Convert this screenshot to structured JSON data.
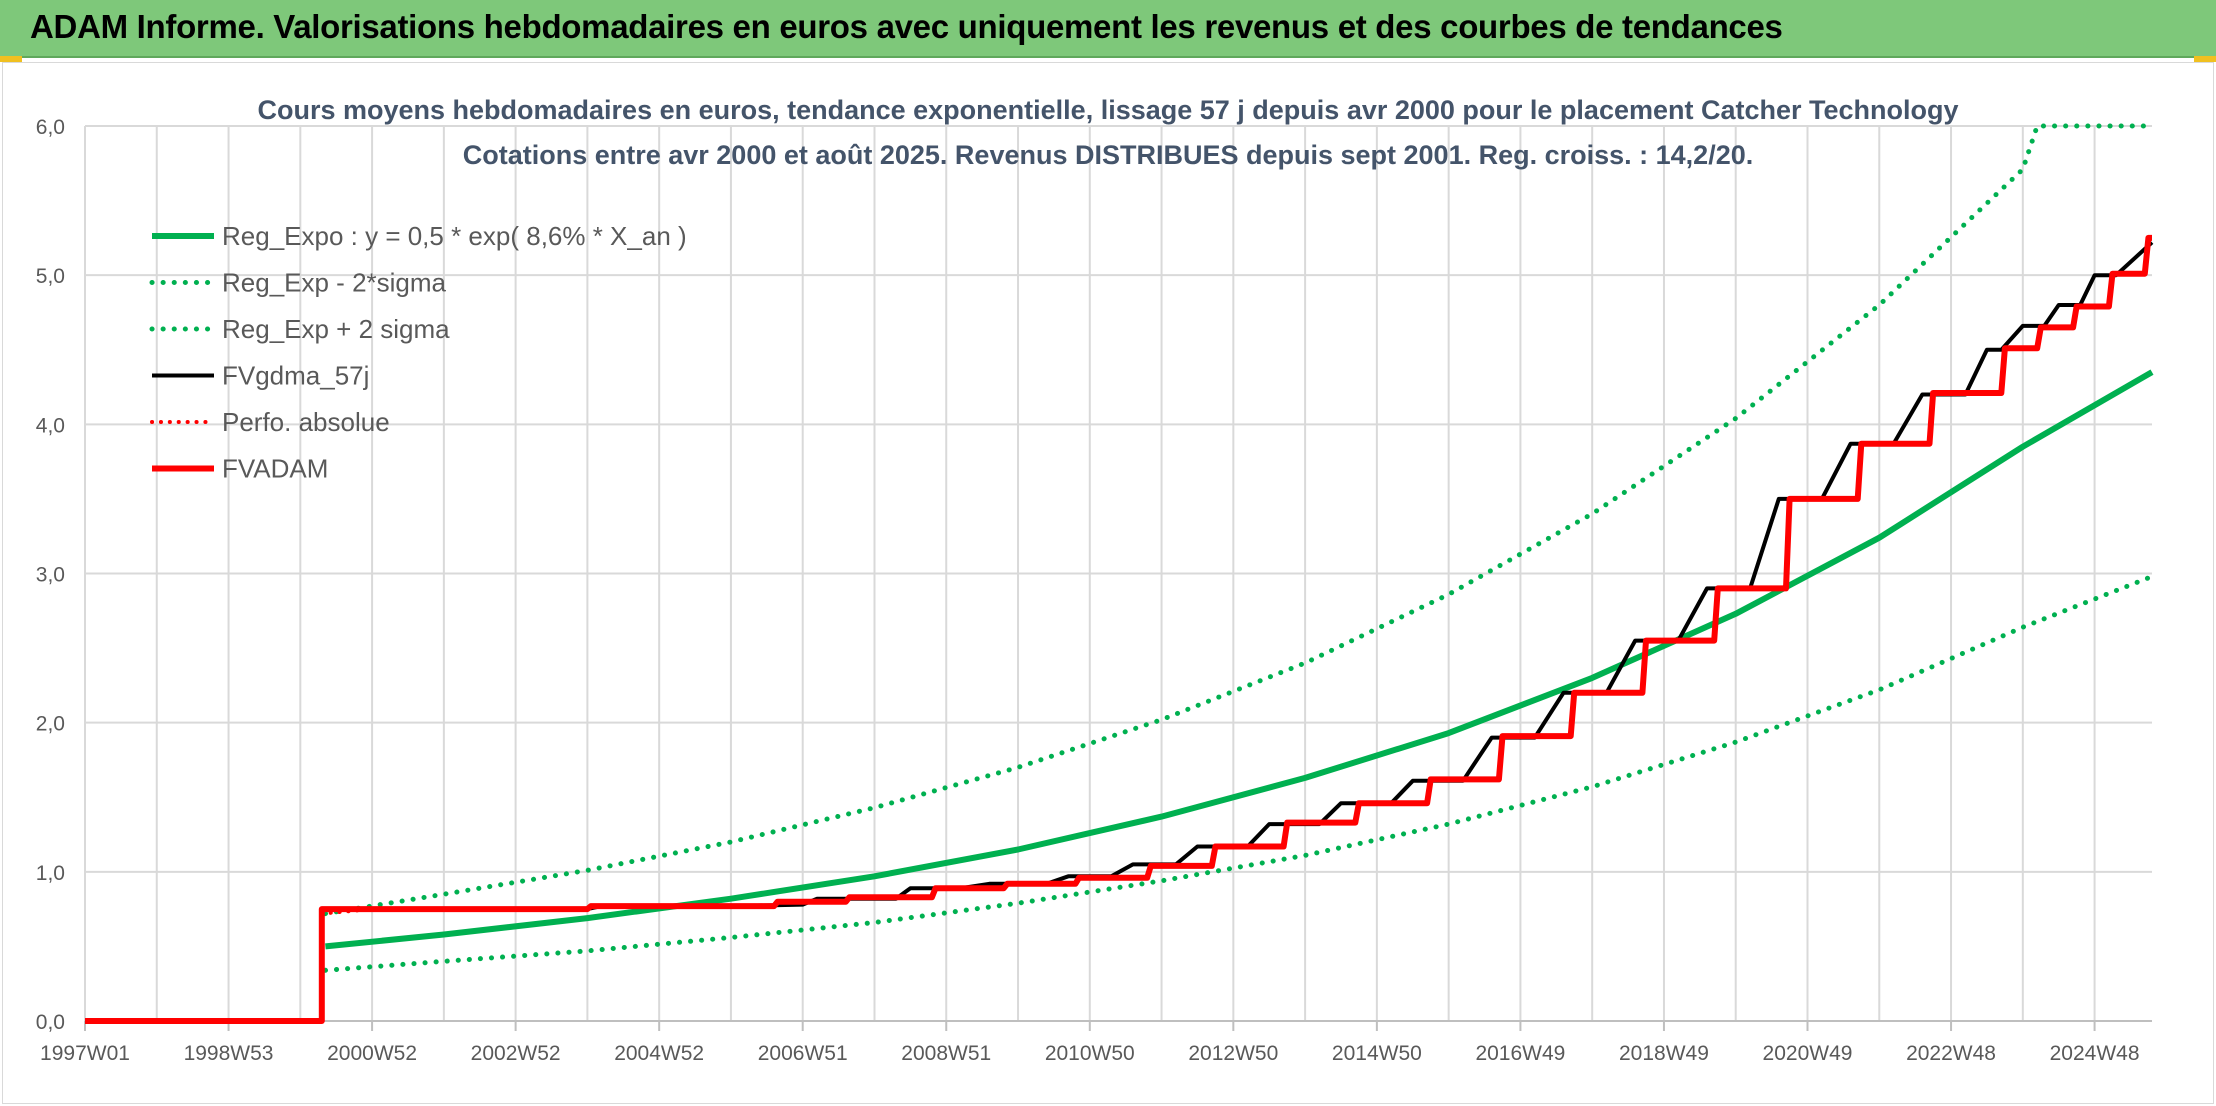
{
  "banner": {
    "title": "ADAM Informe. Valorisations hebdomadaires en euros avec uniquement les revenus et des courbes de tendances"
  },
  "chart_data": {
    "type": "line",
    "title": "Cours moyens hebdomadaires en euros, tendance exponentielle, lissage 57 j depuis avr 2000 pour le placement Catcher Technology",
    "subtitle": "Cotations entre avr 2000 et août 2025. Revenus DISTRIBUES depuis sept 2001. Reg. croiss. : 14,2/20.",
    "xlabel": "",
    "ylabel": "",
    "ylim": [
      0,
      6
    ],
    "xlim": [
      1997.0,
      2025.8
    ],
    "grid": true,
    "legend_position": "top-left",
    "y_ticks": [
      "0,0",
      "1,0",
      "2,0",
      "3,0",
      "4,0",
      "5,0",
      "6,0"
    ],
    "x_ticks": [
      {
        "label": "1997W01",
        "x": 1997.0
      },
      {
        "label": "1998W53",
        "x": 1999.0
      },
      {
        "label": "2000W52",
        "x": 2001.0
      },
      {
        "label": "2002W52",
        "x": 2003.0
      },
      {
        "label": "2004W52",
        "x": 2005.0
      },
      {
        "label": "2006W51",
        "x": 2007.0
      },
      {
        "label": "2008W51",
        "x": 2009.0
      },
      {
        "label": "2010W50",
        "x": 2011.0
      },
      {
        "label": "2012W50",
        "x": 2013.0
      },
      {
        "label": "2014W50",
        "x": 2015.0
      },
      {
        "label": "2016W49",
        "x": 2017.0
      },
      {
        "label": "2018W49",
        "x": 2019.0
      },
      {
        "label": "2020W49",
        "x": 2021.0
      },
      {
        "label": "2022W48",
        "x": 2023.0
      },
      {
        "label": "2024W48",
        "x": 2025.0
      }
    ],
    "series": [
      {
        "name": "Reg_Expo : y = 0,5 * exp( 8,6% *  X_an )",
        "color": "#00b050",
        "style": "solid",
        "width": 6,
        "points": [
          [
            2000.35,
            0.5
          ],
          [
            2002,
            0.58
          ],
          [
            2004,
            0.69
          ],
          [
            2006,
            0.82
          ],
          [
            2008,
            0.97
          ],
          [
            2010,
            1.15
          ],
          [
            2012,
            1.37
          ],
          [
            2014,
            1.63
          ],
          [
            2016,
            1.93
          ],
          [
            2018,
            2.3
          ],
          [
            2020,
            2.73
          ],
          [
            2022,
            3.24
          ],
          [
            2024,
            3.85
          ],
          [
            2025.8,
            4.35
          ]
        ]
      },
      {
        "name": "Reg_Exp - 2*sigma",
        "color": "#00b050",
        "style": "dotted",
        "width": 5,
        "points": [
          [
            2000.35,
            0.34
          ],
          [
            2002,
            0.4
          ],
          [
            2004,
            0.47
          ],
          [
            2006,
            0.56
          ],
          [
            2008,
            0.66
          ],
          [
            2010,
            0.79
          ],
          [
            2012,
            0.94
          ],
          [
            2014,
            1.11
          ],
          [
            2016,
            1.32
          ],
          [
            2018,
            1.57
          ],
          [
            2020,
            1.87
          ],
          [
            2022,
            2.22
          ],
          [
            2024,
            2.64
          ],
          [
            2025.8,
            2.98
          ]
        ]
      },
      {
        "name": "Reg_Exp + 2 sigma",
        "color": "#00b050",
        "style": "dotted",
        "width": 5,
        "points": [
          [
            2000.35,
            0.72
          ],
          [
            2002,
            0.85
          ],
          [
            2004,
            1.01
          ],
          [
            2006,
            1.2
          ],
          [
            2008,
            1.43
          ],
          [
            2010,
            1.7
          ],
          [
            2012,
            2.02
          ],
          [
            2014,
            2.4
          ],
          [
            2016,
            2.86
          ],
          [
            2018,
            3.4
          ],
          [
            2020,
            4.04
          ],
          [
            2022,
            4.8
          ],
          [
            2024,
            5.71
          ],
          [
            2024.2,
            6.0
          ],
          [
            2025.8,
            6.0
          ]
        ]
      },
      {
        "name": "FVgdma_57j",
        "color": "#000000",
        "style": "solid",
        "width": 4,
        "points": [
          [
            1997.0,
            0
          ],
          [
            2000.3,
            0
          ],
          [
            2000.3,
            0.75
          ],
          [
            2004,
            0.75
          ],
          [
            2004.2,
            0.77
          ],
          [
            2006,
            0.77
          ],
          [
            2007,
            0.78
          ],
          [
            2007.2,
            0.82
          ],
          [
            2008.3,
            0.82
          ],
          [
            2008.5,
            0.89
          ],
          [
            2009.2,
            0.89
          ],
          [
            2009.6,
            0.92
          ],
          [
            2010.4,
            0.92
          ],
          [
            2010.7,
            0.97
          ],
          [
            2011.3,
            0.97
          ],
          [
            2011.6,
            1.05
          ],
          [
            2012.2,
            1.05
          ],
          [
            2012.5,
            1.17
          ],
          [
            2013.2,
            1.17
          ],
          [
            2013.5,
            1.32
          ],
          [
            2014.2,
            1.32
          ],
          [
            2014.5,
            1.46
          ],
          [
            2015.2,
            1.46
          ],
          [
            2015.5,
            1.61
          ],
          [
            2016.2,
            1.61
          ],
          [
            2016.6,
            1.9
          ],
          [
            2017.2,
            1.9
          ],
          [
            2017.6,
            2.2
          ],
          [
            2018.2,
            2.2
          ],
          [
            2018.6,
            2.55
          ],
          [
            2019.2,
            2.55
          ],
          [
            2019.6,
            2.9
          ],
          [
            2020.2,
            2.9
          ],
          [
            2020.6,
            3.5
          ],
          [
            2021.2,
            3.5
          ],
          [
            2021.6,
            3.87
          ],
          [
            2022.2,
            3.87
          ],
          [
            2022.6,
            4.2
          ],
          [
            2023.2,
            4.2
          ],
          [
            2023.5,
            4.5
          ],
          [
            2023.7,
            4.5
          ],
          [
            2024.0,
            4.66
          ],
          [
            2024.3,
            4.66
          ],
          [
            2024.5,
            4.8
          ],
          [
            2024.8,
            4.8
          ],
          [
            2025.0,
            5.0
          ],
          [
            2025.3,
            5.0
          ],
          [
            2025.8,
            5.22
          ]
        ]
      },
      {
        "name": "Perfo. absolue",
        "color": "#ff0000",
        "style": "dotted",
        "width": 4,
        "points": [
          [
            2000.3,
            0.72
          ],
          [
            2001.0,
            0.75
          ],
          [
            2004,
            0.75
          ]
        ]
      },
      {
        "name": "FVADAM",
        "color": "#ff0000",
        "style": "solid",
        "width": 6,
        "points": [
          [
            1997.0,
            0
          ],
          [
            2000.3,
            0
          ],
          [
            2000.3,
            0.75
          ],
          [
            2004,
            0.75
          ],
          [
            2004.05,
            0.77
          ],
          [
            2006.6,
            0.77
          ],
          [
            2006.65,
            0.8
          ],
          [
            2007.6,
            0.8
          ],
          [
            2007.65,
            0.83
          ],
          [
            2008.8,
            0.83
          ],
          [
            2008.85,
            0.89
          ],
          [
            2009.8,
            0.89
          ],
          [
            2009.85,
            0.92
          ],
          [
            2010.8,
            0.92
          ],
          [
            2010.85,
            0.96
          ],
          [
            2011.8,
            0.96
          ],
          [
            2011.85,
            1.04
          ],
          [
            2012.7,
            1.04
          ],
          [
            2012.75,
            1.17
          ],
          [
            2013.7,
            1.17
          ],
          [
            2013.75,
            1.33
          ],
          [
            2014.7,
            1.33
          ],
          [
            2014.75,
            1.46
          ],
          [
            2015.7,
            1.46
          ],
          [
            2015.75,
            1.62
          ],
          [
            2016.7,
            1.62
          ],
          [
            2016.75,
            1.91
          ],
          [
            2017.7,
            1.91
          ],
          [
            2017.75,
            2.2
          ],
          [
            2018.7,
            2.2
          ],
          [
            2018.75,
            2.55
          ],
          [
            2019.7,
            2.55
          ],
          [
            2019.75,
            2.9
          ],
          [
            2020.7,
            2.9
          ],
          [
            2020.75,
            3.5
          ],
          [
            2021.7,
            3.5
          ],
          [
            2021.75,
            3.87
          ],
          [
            2022.7,
            3.87
          ],
          [
            2022.75,
            4.21
          ],
          [
            2023.7,
            4.21
          ],
          [
            2023.75,
            4.51
          ],
          [
            2024.2,
            4.51
          ],
          [
            2024.25,
            4.65
          ],
          [
            2024.7,
            4.65
          ],
          [
            2024.75,
            4.79
          ],
          [
            2025.2,
            4.79
          ],
          [
            2025.25,
            5.01
          ],
          [
            2025.7,
            5.01
          ],
          [
            2025.75,
            5.25
          ],
          [
            2025.8,
            5.25
          ]
        ]
      }
    ]
  }
}
